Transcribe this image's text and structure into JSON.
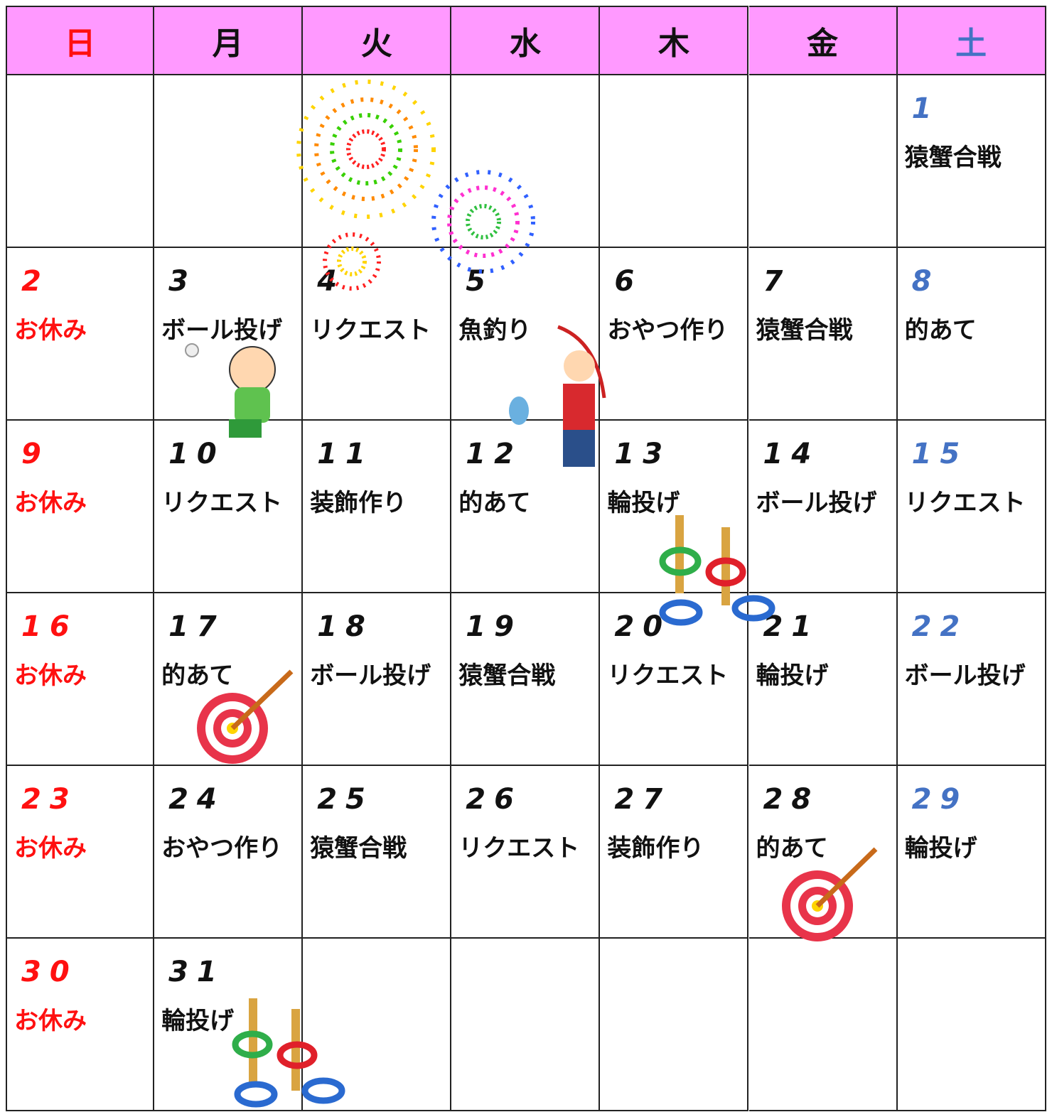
{
  "header": {
    "days": [
      "日",
      "月",
      "火",
      "水",
      "木",
      "金",
      "土"
    ]
  },
  "weeks": [
    [
      null,
      null,
      null,
      null,
      null,
      null,
      {
        "day": 1,
        "event": "猿蟹合戦"
      }
    ],
    [
      {
        "day": 2,
        "event": "お休み"
      },
      {
        "day": 3,
        "event": "ボール投げ"
      },
      {
        "day": 4,
        "event": "リクエスト"
      },
      {
        "day": 5,
        "event": "魚釣り"
      },
      {
        "day": 6,
        "event": "おやつ作り"
      },
      {
        "day": 7,
        "event": "猿蟹合戦"
      },
      {
        "day": 8,
        "event": "的あて"
      }
    ],
    [
      {
        "day": 9,
        "event": "お休み"
      },
      {
        "day": 10,
        "event": "リクエスト"
      },
      {
        "day": 11,
        "event": "装飾作り"
      },
      {
        "day": 12,
        "event": "的あて"
      },
      {
        "day": 13,
        "event": "輪投げ"
      },
      {
        "day": 14,
        "event": "ボール投げ"
      },
      {
        "day": 15,
        "event": "リクエスト"
      }
    ],
    [
      {
        "day": 16,
        "event": "お休み"
      },
      {
        "day": 17,
        "event": "的あて"
      },
      {
        "day": 18,
        "event": "ボール投げ"
      },
      {
        "day": 19,
        "event": "猿蟹合戦"
      },
      {
        "day": 20,
        "event": "リクエスト"
      },
      {
        "day": 21,
        "event": "輪投げ"
      },
      {
        "day": 22,
        "event": "ボール投げ"
      }
    ],
    [
      {
        "day": 23,
        "event": "お休み"
      },
      {
        "day": 24,
        "event": "おやつ作り"
      },
      {
        "day": 25,
        "event": "猿蟹合戦"
      },
      {
        "day": 26,
        "event": "リクエスト"
      },
      {
        "day": 27,
        "event": "装飾作り"
      },
      {
        "day": 28,
        "event": "的あて"
      },
      {
        "day": 29,
        "event": "輪投げ"
      }
    ],
    [
      {
        "day": 30,
        "event": "お休み"
      },
      {
        "day": 31,
        "event": "輪投げ"
      },
      null,
      null,
      null,
      null,
      null
    ]
  ]
}
